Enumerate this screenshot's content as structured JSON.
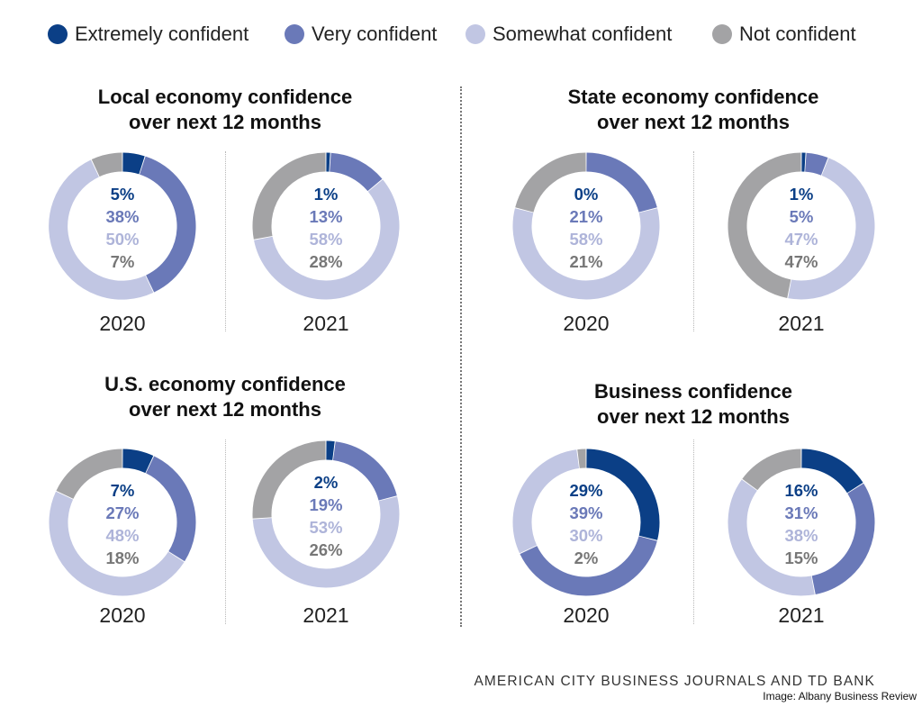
{
  "legend": [
    {
      "label": "Extremely confident",
      "color": "#0b3f86"
    },
    {
      "label": "Very confident",
      "color": "#6a79b8"
    },
    {
      "label": "Somewhat confident",
      "color": "#c1c6e3"
    },
    {
      "label": "Not confident",
      "color": "#a3a3a5"
    }
  ],
  "chart_data": [
    {
      "type": "donut",
      "title": [
        "Local economy confidence",
        "over next 12 months"
      ],
      "charts": [
        {
          "year": "2020",
          "values": [
            5,
            38,
            50,
            7
          ],
          "labels": [
            "5%",
            "38%",
            "50%",
            "7%"
          ]
        },
        {
          "year": "2021",
          "values": [
            1,
            13,
            58,
            28
          ],
          "labels": [
            "1%",
            "13%",
            "58%",
            "28%"
          ]
        }
      ]
    },
    {
      "type": "donut",
      "title": [
        "State economy confidence",
        "over next 12 months"
      ],
      "charts": [
        {
          "year": "2020",
          "values": [
            0,
            21,
            58,
            21
          ],
          "labels": [
            "0%",
            "21%",
            "58%",
            "21%"
          ]
        },
        {
          "year": "2021",
          "values": [
            1,
            5,
            47,
            47
          ],
          "labels": [
            "1%",
            "5%",
            "47%",
            "47%"
          ]
        }
      ]
    },
    {
      "type": "donut",
      "title": [
        "U.S. economy confidence",
        "over next 12 months"
      ],
      "charts": [
        {
          "year": "2020",
          "values": [
            7,
            27,
            48,
            18
          ],
          "labels": [
            "7%",
            "27%",
            "48%",
            "18%"
          ]
        },
        {
          "year": "2021",
          "values": [
            2,
            19,
            53,
            26
          ],
          "labels": [
            "2%",
            "19%",
            "53%",
            "26%"
          ]
        }
      ]
    },
    {
      "type": "donut",
      "title": [
        "Business confidence",
        "over next 12 months"
      ],
      "charts": [
        {
          "year": "2020",
          "values": [
            29,
            39,
            30,
            2
          ],
          "labels": [
            "29%",
            "39%",
            "30%",
            "2%"
          ]
        },
        {
          "year": "2021",
          "values": [
            16,
            31,
            38,
            15
          ],
          "labels": [
            "16%",
            "31%",
            "38%",
            "15%"
          ]
        }
      ]
    }
  ],
  "source": "AMERICAN CITY BUSINESS JOURNALS AND TD BANK",
  "credit": "Image: Albany Business Review"
}
